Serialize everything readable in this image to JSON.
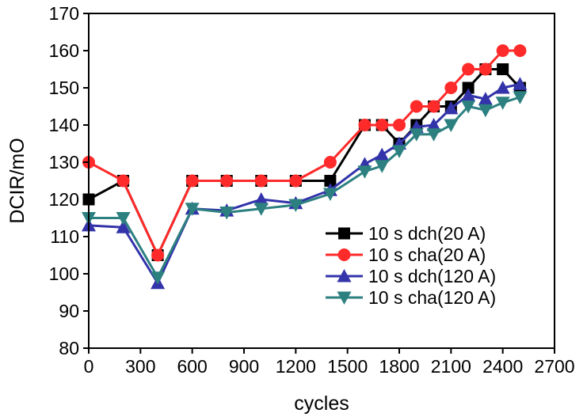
{
  "chart_data": {
    "type": "line",
    "title": "",
    "xlabel": "cycles",
    "ylabel": "DCIR/mO",
    "xlim": [
      0,
      2700
    ],
    "ylim": [
      80,
      170
    ],
    "xticks": [
      0,
      300,
      600,
      900,
      1200,
      1500,
      1800,
      2100,
      2400,
      2700
    ],
    "yticks": [
      80,
      90,
      100,
      110,
      120,
      130,
      140,
      150,
      160,
      170
    ],
    "grid": false,
    "legend_position": "bottom-right",
    "series": [
      {
        "name": "10 s dch(20 A)",
        "color": "#000000",
        "marker": "square",
        "x": [
          0,
          200,
          400,
          600,
          800,
          1000,
          1200,
          1400,
          1600,
          1700,
          1800,
          1900,
          2000,
          2100,
          2200,
          2300,
          2400,
          2500
        ],
        "y": [
          120,
          125,
          105,
          125,
          125,
          125,
          125,
          125,
          140,
          140,
          135,
          140,
          145,
          145,
          150,
          155,
          155,
          150
        ]
      },
      {
        "name": "10 s cha(20 A)",
        "color": "#ff2a2a",
        "marker": "circle",
        "x": [
          0,
          200,
          400,
          600,
          800,
          1000,
          1200,
          1400,
          1600,
          1700,
          1800,
          1900,
          2000,
          2100,
          2200,
          2300,
          2400,
          2500
        ],
        "y": [
          130,
          125,
          105,
          125,
          125,
          125,
          125,
          130,
          140,
          140,
          140,
          145,
          145,
          150,
          155,
          155,
          160,
          160
        ]
      },
      {
        "name": "10 s dch(120 A)",
        "color": "#3333aa",
        "marker": "triangle-up",
        "x": [
          0,
          200,
          400,
          600,
          800,
          1000,
          1200,
          1400,
          1600,
          1700,
          1800,
          1900,
          2000,
          2100,
          2200,
          2300,
          2400,
          2500
        ],
        "y": [
          113,
          112.5,
          97.5,
          117.5,
          117,
          120,
          119,
          122.5,
          129.5,
          132,
          135,
          139.5,
          140,
          144.5,
          148,
          147,
          150,
          151
        ]
      },
      {
        "name": "10 s cha(120 A)",
        "color": "#2d8080",
        "marker": "triangle-down",
        "x": [
          0,
          200,
          400,
          600,
          800,
          1000,
          1200,
          1400,
          1600,
          1700,
          1800,
          1900,
          2000,
          2100,
          2200,
          2300,
          2400,
          2500
        ],
        "y": [
          115,
          115,
          99,
          117.5,
          116.5,
          117.5,
          118.5,
          121.5,
          127.5,
          129,
          133,
          137.5,
          137.5,
          140,
          145,
          144,
          146,
          147.5
        ]
      }
    ]
  }
}
